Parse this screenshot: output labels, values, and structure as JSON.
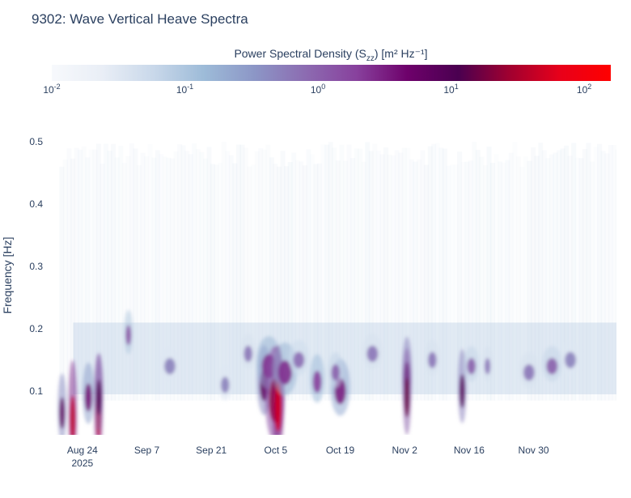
{
  "chart_data": {
    "type": "heatmap",
    "title": "9302: Wave Vertical Heave Spectra",
    "colorbar": {
      "title_main": "Power Spectral Density (S",
      "title_sub": "zz",
      "title_units": ") [m² Hz⁻¹]",
      "scale": "log",
      "range_log10": [
        -2,
        2.2
      ],
      "ticks": [
        {
          "base": "10",
          "exp": "-2",
          "log": -2
        },
        {
          "base": "10",
          "exp": "-1",
          "log": -1
        },
        {
          "base": "10",
          "exp": "0",
          "log": 0
        },
        {
          "base": "10",
          "exp": "1",
          "log": 1
        },
        {
          "base": "10",
          "exp": "2",
          "log": 2
        }
      ],
      "colorscale": [
        "#f7f9fc",
        "#e9eef6",
        "#c9d8ea",
        "#9dbbd8",
        "#8c96c6",
        "#8c6bb1",
        "#88419d",
        "#6e016b",
        "#4a0050",
        "#a00030",
        "#e8001a",
        "#ff0000"
      ],
      "placement": "top-horizontal"
    },
    "ylabel": "Frequency [Hz]",
    "ylim": [
      0.03,
      0.53
    ],
    "yticks": [
      0.1,
      0.2,
      0.3,
      0.4,
      0.5
    ],
    "xlim_day": [
      -7,
      116
    ],
    "xticks": [
      {
        "label": "Aug 24",
        "sub": "2025",
        "day": 0
      },
      {
        "label": "Sep 7",
        "sub": "",
        "day": 14
      },
      {
        "label": "Sep 21",
        "sub": "",
        "day": 28
      },
      {
        "label": "Oct 5",
        "sub": "",
        "day": 42
      },
      {
        "label": "Oct 19",
        "sub": "",
        "day": 56
      },
      {
        "label": "Nov 2",
        "sub": "",
        "day": 70
      },
      {
        "label": "Nov 16",
        "sub": "",
        "day": 84
      },
      {
        "label": "Nov 30",
        "sub": "",
        "day": 98
      }
    ],
    "events": [
      {
        "day": -4.4,
        "freq": 0.065,
        "width_days": 0.5,
        "log_psd": 0.8
      },
      {
        "day": -2.1,
        "freq": 0.055,
        "width_days": 0.5,
        "log_psd": 1.6
      },
      {
        "day": 1.3,
        "freq": 0.09,
        "width_days": 1.2,
        "log_psd": 0.6
      },
      {
        "day": 3.5,
        "freq": 0.065,
        "width_days": 0.8,
        "log_psd": 1.6
      },
      {
        "day": 3.6,
        "freq": 0.09,
        "width_days": 0.6,
        "log_psd": 1.0
      },
      {
        "day": 10,
        "freq": 0.19,
        "width_days": 0.8,
        "log_psd": 0.2
      },
      {
        "day": 19,
        "freq": 0.14,
        "width_days": 2.0,
        "log_psd": -0.3
      },
      {
        "day": 31,
        "freq": 0.11,
        "width_days": 1.5,
        "log_psd": -0.3
      },
      {
        "day": 36,
        "freq": 0.16,
        "width_days": 1.5,
        "log_psd": -0.2
      },
      {
        "day": 39.5,
        "freq": 0.11,
        "width_days": 1.5,
        "log_psd": 0.8
      },
      {
        "day": 40.5,
        "freq": 0.14,
        "width_days": 2.5,
        "log_psd": 0.4
      },
      {
        "day": 41.8,
        "freq": 0.085,
        "width_days": 2.0,
        "log_psd": 1.4
      },
      {
        "day": 42.5,
        "freq": 0.075,
        "width_days": 1.2,
        "log_psd": 1.7
      },
      {
        "day": 44,
        "freq": 0.13,
        "width_days": 2.5,
        "log_psd": 0.4
      },
      {
        "day": 47,
        "freq": 0.15,
        "width_days": 2.0,
        "log_psd": -0.1
      },
      {
        "day": 51,
        "freq": 0.115,
        "width_days": 1.5,
        "log_psd": 0.3
      },
      {
        "day": 56,
        "freq": 0.1,
        "width_days": 2.0,
        "log_psd": 0.5
      },
      {
        "day": 55,
        "freq": 0.13,
        "width_days": 1.5,
        "log_psd": 0.0
      },
      {
        "day": 63,
        "freq": 0.16,
        "width_days": 2.0,
        "log_psd": -0.2
      },
      {
        "day": 70.5,
        "freq": 0.12,
        "width_days": 1.0,
        "log_psd": 0.9
      },
      {
        "day": 70.5,
        "freq": 0.09,
        "width_days": 0.7,
        "log_psd": 1.2
      },
      {
        "day": 76,
        "freq": 0.15,
        "width_days": 1.5,
        "log_psd": -0.2
      },
      {
        "day": 82.5,
        "freq": 0.1,
        "width_days": 0.8,
        "log_psd": 0.9
      },
      {
        "day": 84.5,
        "freq": 0.14,
        "width_days": 1.5,
        "log_psd": 0.0
      },
      {
        "day": 88,
        "freq": 0.14,
        "width_days": 1.0,
        "log_psd": -0.2
      },
      {
        "day": 97,
        "freq": 0.13,
        "width_days": 2.0,
        "log_psd": -0.2
      },
      {
        "day": 102,
        "freq": 0.14,
        "width_days": 2.0,
        "log_psd": 0.0
      },
      {
        "day": 106,
        "freq": 0.15,
        "width_days": 2.0,
        "log_psd": -0.3
      }
    ]
  }
}
